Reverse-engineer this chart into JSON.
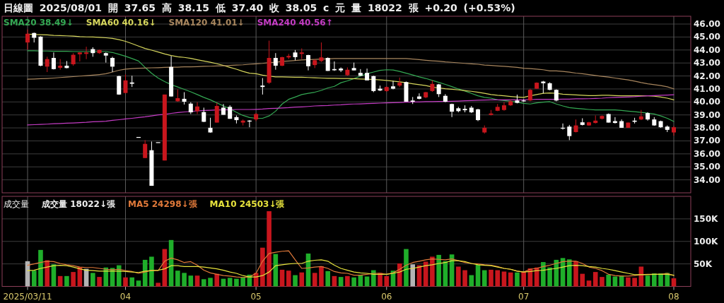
{
  "chart_data": [
    {
      "type": "candlestick",
      "title": "日線圖 2025/08/01 開 37.65 高 38.15 低 37.40 收 38.05 c 元 量 18022 張 +0.20 (+0.53%)",
      "categories": [
        "2025/03/11",
        null,
        null,
        null,
        null,
        null,
        null,
        null,
        null,
        null,
        null,
        null,
        null,
        null,
        null,
        "04",
        null,
        null,
        null,
        null,
        null,
        null,
        null,
        null,
        null,
        null,
        null,
        null,
        null,
        null,
        null,
        null,
        null,
        null,
        null,
        "05",
        null,
        null,
        null,
        null,
        null,
        null,
        null,
        null,
        null,
        null,
        null,
        null,
        null,
        null,
        null,
        null,
        null,
        null,
        null,
        "06",
        null,
        null,
        null,
        null,
        null,
        null,
        null,
        null,
        null,
        null,
        null,
        null,
        null,
        null,
        null,
        null,
        null,
        null,
        null,
        null,
        "07",
        null,
        null,
        null,
        null,
        null,
        null,
        null,
        null,
        null,
        null,
        null,
        null,
        null,
        null,
        null,
        null,
        null,
        null,
        null,
        null,
        null,
        null,
        "08"
      ],
      "ohlc": [
        [
          44.58,
          45.58,
          44.03,
          45.25
        ],
        [
          45.31,
          45.34,
          44.58,
          44.94
        ],
        [
          45.03,
          45.06,
          42.75,
          42.79
        ],
        [
          42.72,
          43.48,
          42.3,
          43.3
        ],
        [
          43.39,
          43.81,
          42.5,
          42.53
        ],
        [
          42.63,
          43.3,
          42.48,
          42.79
        ],
        [
          42.79,
          43.15,
          42.59,
          42.61
        ],
        [
          42.9,
          43.76,
          42.79,
          43.63
        ],
        [
          43.67,
          43.84,
          43.12,
          43.81
        ],
        [
          43.7,
          44.25,
          43.3,
          43.81
        ],
        [
          44.07,
          44.21,
          43.48,
          43.76
        ],
        [
          43.76,
          44.03,
          43.7,
          44.0
        ],
        [
          43.76,
          43.81,
          43.03,
          43.57
        ],
        [
          43.39,
          43.48,
          42.3,
          42.72
        ],
        [
          41.99,
          42.02,
          40.55,
          40.57
        ],
        [
          40.69,
          42.12,
          40.66,
          41.66
        ],
        [
          41.5,
          42.02,
          41.15,
          41.4
        ],
        [
          37.3,
          37.3,
          37.3,
          37.3
        ],
        [
          35.68,
          37.06,
          35.68,
          36.77
        ],
        [
          36.28,
          36.95,
          33.54,
          33.54
        ],
        [
          36.9,
          36.9,
          36.9,
          36.9
        ],
        [
          35.49,
          40.57,
          35.49,
          40.57
        ],
        [
          42.7,
          43.54,
          40.42,
          40.42
        ],
        [
          40.05,
          40.97,
          40.02,
          40.29
        ],
        [
          40.24,
          40.75,
          39.8,
          40.02
        ],
        [
          39.87,
          39.98,
          39.07,
          39.2
        ],
        [
          39.29,
          39.98,
          39.07,
          39.65
        ],
        [
          39.22,
          39.56,
          38.45,
          38.47
        ],
        [
          38.01,
          38.78,
          37.63,
          37.65
        ],
        [
          38.41,
          39.93,
          38.41,
          39.69
        ],
        [
          39.56,
          39.84,
          39.01,
          39.01
        ],
        [
          39.62,
          39.74,
          38.7,
          38.7
        ],
        [
          38.83,
          38.96,
          38.34,
          38.6
        ],
        [
          38.41,
          38.65,
          38.19,
          38.56
        ],
        [
          38.56,
          38.6,
          38.05,
          38.49
        ],
        [
          38.65,
          39.14,
          38.52,
          39.07
        ],
        [
          41.26,
          41.84,
          40.57,
          41.15
        ],
        [
          41.48,
          44.72,
          41.39,
          43.39
        ],
        [
          43.39,
          43.76,
          42.48,
          42.79
        ],
        [
          42.79,
          43.48,
          42.75,
          43.45
        ],
        [
          43.43,
          43.7,
          43.3,
          43.54
        ],
        [
          43.81,
          44.0,
          43.21,
          43.45
        ],
        [
          43.7,
          44.12,
          43.3,
          43.81
        ],
        [
          43.61,
          43.63,
          42.43,
          42.75
        ],
        [
          42.84,
          43.3,
          42.61,
          43.21
        ],
        [
          43.15,
          44.58,
          43.08,
          43.43
        ],
        [
          43.39,
          43.43,
          42.39,
          42.39
        ],
        [
          42.53,
          43.12,
          42.39,
          42.44
        ],
        [
          42.57,
          42.66,
          42.3,
          42.43
        ],
        [
          42.06,
          42.66,
          42.02,
          42.48
        ],
        [
          42.61,
          43.03,
          42.43,
          42.43
        ],
        [
          42.24,
          42.53,
          41.99,
          42.02
        ],
        [
          42.24,
          42.57,
          41.66,
          41.66
        ],
        [
          41.99,
          42.02,
          40.75,
          40.84
        ],
        [
          41.02,
          41.26,
          40.84,
          40.88
        ],
        [
          40.84,
          41.2,
          40.78,
          41.15
        ],
        [
          41.2,
          41.62,
          40.97,
          41.02
        ],
        [
          41.26,
          41.88,
          41.15,
          41.48
        ],
        [
          41.53,
          41.57,
          40.02,
          40.02
        ],
        [
          40.11,
          40.38,
          39.84,
          40.02
        ],
        [
          40.42,
          40.66,
          40.2,
          40.24
        ],
        [
          40.35,
          40.78,
          40.29,
          40.75
        ],
        [
          40.84,
          41.66,
          40.78,
          41.39
        ],
        [
          41.35,
          41.39,
          40.38,
          40.6
        ],
        [
          40.47,
          40.6,
          39.98,
          40.02
        ],
        [
          39.84,
          39.87,
          38.83,
          39.25
        ],
        [
          39.51,
          39.62,
          39.2,
          39.29
        ],
        [
          39.47,
          39.74,
          39.2,
          39.36
        ],
        [
          39.56,
          39.69,
          39.14,
          39.2
        ],
        [
          39.43,
          39.47,
          38.52,
          38.6
        ],
        [
          37.65,
          38.19,
          37.56,
          38.01
        ],
        [
          39.0,
          39.38,
          38.96,
          39.11
        ],
        [
          39.32,
          39.84,
          39.29,
          39.62
        ],
        [
          39.38,
          39.98,
          39.32,
          39.74
        ],
        [
          39.74,
          40.2,
          39.69,
          40.05
        ],
        [
          40.11,
          40.56,
          39.89,
          39.93
        ],
        [
          40.11,
          40.2,
          40.02,
          40.05
        ],
        [
          40.11,
          41.02,
          40.05,
          40.93
        ],
        [
          41.02,
          41.51,
          41.0,
          41.48
        ],
        [
          41.57,
          41.62,
          40.66,
          41.44
        ],
        [
          41.44,
          41.51,
          40.9,
          40.93
        ],
        [
          40.93,
          40.97,
          40.05,
          40.11
        ],
        [
          38.01,
          38.34,
          37.87,
          37.98
        ],
        [
          38.1,
          38.23,
          37.06,
          37.37
        ],
        [
          37.68,
          38.65,
          37.65,
          38.19
        ],
        [
          38.43,
          38.74,
          38.19,
          38.23
        ],
        [
          38.19,
          38.47,
          38.16,
          38.43
        ],
        [
          38.38,
          38.96,
          38.34,
          38.56
        ],
        [
          38.7,
          38.96,
          38.65,
          38.92
        ],
        [
          39.07,
          39.11,
          38.41,
          38.41
        ],
        [
          38.52,
          38.83,
          38.34,
          38.38
        ],
        [
          38.52,
          38.65,
          38.01,
          38.01
        ],
        [
          38.01,
          38.41,
          38.01,
          38.41
        ],
        [
          38.56,
          38.78,
          38.34,
          38.47
        ],
        [
          38.65,
          39.38,
          38.6,
          38.89
        ],
        [
          39.14,
          39.2,
          38.56,
          38.65
        ],
        [
          38.65,
          38.83,
          38.16,
          38.19
        ],
        [
          38.52,
          38.56,
          38.01,
          38.05
        ],
        [
          38.1,
          38.19,
          37.68,
          37.85
        ],
        [
          37.65,
          38.15,
          37.4,
          38.05
        ]
      ],
      "colors": [
        "#c8161d",
        "#ffffff",
        "#ffffff",
        "#c8161d",
        "#ffffff",
        "#c8161d",
        "#ffffff",
        "#c8161d",
        "#c8161d",
        "#c8161d",
        "#ffffff",
        "#c8161d",
        "#ffffff",
        "#ffffff",
        "#ffffff",
        "#c8161d",
        "#ffffff",
        "#ffffff",
        "#c8161d",
        "#ffffff",
        "#ffffff",
        "#c8161d",
        "#ffffff",
        "#c8161d",
        "#ffffff",
        "#ffffff",
        "#c8161d",
        "#ffffff",
        "#ffffff",
        "#c8161d",
        "#ffffff",
        "#ffffff",
        "#ffffff",
        "#c8161d",
        "#ffffff",
        "#c8161d",
        "#ffffff",
        "#c8161d",
        "#ffffff",
        "#c8161d",
        "#c8161d",
        "#ffffff",
        "#c8161d",
        "#ffffff",
        "#c8161d",
        "#c8161d",
        "#ffffff",
        "#ffffff",
        "#ffffff",
        "#c8161d",
        "#ffffff",
        "#ffffff",
        "#ffffff",
        "#ffffff",
        "#ffffff",
        "#c8161d",
        "#ffffff",
        "#c8161d",
        "#ffffff",
        "#ffffff",
        "#ffffff",
        "#c8161d",
        "#c8161d",
        "#ffffff",
        "#ffffff",
        "#ffffff",
        "#ffffff",
        "#ffffff",
        "#ffffff",
        "#ffffff",
        "#c8161d",
        "#c8161d",
        "#c8161d",
        "#c8161d",
        "#c8161d",
        "#ffffff",
        "#ffffff",
        "#c8161d",
        "#c8161d",
        "#ffffff",
        "#ffffff",
        "#ffffff",
        "#ffffff",
        "#ffffff",
        "#c8161d",
        "#ffffff",
        "#c8161d",
        "#c8161d",
        "#c8161d",
        "#ffffff",
        "#ffffff",
        "#ffffff",
        "#c8161d",
        "#ffffff",
        "#c8161d",
        "#ffffff",
        "#ffffff",
        "#ffffff",
        "#ffffff",
        "#c8161d"
      ],
      "series": [
        {
          "name": "SMA20 38.49↓",
          "type": "line",
          "color": "#34a853",
          "values": [
            43.94,
            43.94,
            43.92,
            43.92,
            43.9,
            43.9,
            43.9,
            43.88,
            43.88,
            43.88,
            43.88,
            43.88,
            43.88,
            43.81,
            43.67,
            43.52,
            43.34,
            43.15,
            42.66,
            42.21,
            41.84,
            41.57,
            41.33,
            41.15,
            40.97,
            40.78,
            40.57,
            40.35,
            40.16,
            39.93,
            39.69,
            39.47,
            39.2,
            38.96,
            38.8,
            38.74,
            38.74,
            38.92,
            39.29,
            39.84,
            40.2,
            40.38,
            40.57,
            40.66,
            40.75,
            40.89,
            41.08,
            41.2,
            41.48,
            41.62,
            41.79,
            41.99,
            42.17,
            42.3,
            42.43,
            42.48,
            42.46,
            42.35,
            42.21,
            42.08,
            41.93,
            41.81,
            41.66,
            41.51,
            41.35,
            41.18,
            41.0,
            40.84,
            40.66,
            40.47,
            40.35,
            40.29,
            40.16,
            40.11,
            40.05,
            39.98,
            39.89,
            39.84,
            39.93,
            39.98,
            40.02,
            39.84,
            39.69,
            39.56,
            39.51,
            39.47,
            39.42,
            39.38,
            39.38,
            39.38,
            39.38,
            39.34,
            39.29,
            39.25,
            39.2,
            39.14,
            39.07,
            38.92,
            38.74,
            38.49
          ]
        },
        {
          "name": "SMA60 40.16↓",
          "type": "line",
          "color": "#d6d65c",
          "values": [
            45.22,
            45.2,
            45.18,
            45.16,
            45.12,
            45.11,
            45.09,
            45.07,
            45.03,
            45.01,
            45.0,
            44.98,
            44.94,
            44.89,
            44.8,
            44.67,
            44.49,
            44.3,
            44.12,
            43.99,
            43.85,
            43.7,
            43.57,
            43.48,
            43.43,
            43.36,
            43.25,
            43.15,
            43.06,
            42.94,
            42.81,
            42.66,
            42.52,
            42.35,
            42.21,
            42.17,
            42.06,
            41.99,
            41.93,
            41.93,
            41.91,
            41.9,
            41.9,
            41.88,
            41.86,
            41.84,
            41.82,
            41.82,
            41.81,
            41.81,
            41.79,
            41.77,
            41.75,
            41.73,
            41.7,
            41.66,
            41.6,
            41.55,
            41.48,
            41.4,
            41.33,
            41.26,
            41.15,
            41.08,
            41.02,
            40.98,
            40.93,
            40.87,
            40.82,
            40.75,
            40.66,
            40.57,
            40.51,
            40.47,
            40.42,
            40.38,
            40.35,
            40.47,
            40.57,
            40.66,
            40.69,
            40.66,
            40.6,
            40.57,
            40.54,
            40.51,
            40.49,
            40.49,
            40.51,
            40.51,
            40.49,
            40.47,
            40.47,
            40.47,
            40.47,
            40.47,
            40.44,
            40.38,
            40.29,
            40.16
          ]
        },
        {
          "name": "SMA120 41.01↓",
          "type": "line",
          "color": "#a8865e",
          "values": [
            41.75,
            41.77,
            41.79,
            41.81,
            41.84,
            41.88,
            41.91,
            41.95,
            41.99,
            42.02,
            42.06,
            42.11,
            42.17,
            42.3,
            42.44,
            42.53,
            42.57,
            42.59,
            42.61,
            42.63,
            42.64,
            42.66,
            42.68,
            42.68,
            42.7,
            42.7,
            42.72,
            42.74,
            42.75,
            42.77,
            42.79,
            42.81,
            42.84,
            42.86,
            42.9,
            42.94,
            42.97,
            43.03,
            43.06,
            43.12,
            43.15,
            43.19,
            43.23,
            43.26,
            43.28,
            43.3,
            43.32,
            43.34,
            43.34,
            43.34,
            43.34,
            43.34,
            43.34,
            43.34,
            43.34,
            43.34,
            43.34,
            43.34,
            43.34,
            43.3,
            43.26,
            43.21,
            43.17,
            43.14,
            43.08,
            43.05,
            43.01,
            42.97,
            42.94,
            42.9,
            42.84,
            42.81,
            42.77,
            42.74,
            42.7,
            42.66,
            42.6,
            42.57,
            42.53,
            42.48,
            42.39,
            42.39,
            42.35,
            42.3,
            42.22,
            42.17,
            42.11,
            42.04,
            41.97,
            41.91,
            41.84,
            41.77,
            41.7,
            41.6,
            41.49,
            41.4,
            41.33,
            41.26,
            41.17,
            41.01
          ]
        },
        {
          "name": "SMA240 40.56↑",
          "type": "line",
          "color": "#c43cc4",
          "values": [
            38.23,
            38.25,
            38.27,
            38.29,
            38.32,
            38.34,
            38.36,
            38.38,
            38.41,
            38.43,
            38.47,
            38.49,
            38.52,
            38.58,
            38.63,
            38.69,
            38.74,
            38.8,
            38.85,
            38.92,
            39.0,
            39.05,
            39.12,
            39.18,
            39.23,
            39.27,
            39.31,
            39.34,
            39.36,
            39.38,
            39.38,
            39.4,
            39.42,
            39.42,
            39.42,
            39.43,
            39.45,
            39.49,
            39.51,
            39.54,
            39.56,
            39.6,
            39.62,
            39.65,
            39.69,
            39.71,
            39.72,
            39.76,
            39.78,
            39.82,
            39.84,
            39.85,
            39.87,
            39.89,
            39.91,
            39.93,
            39.94,
            39.96,
            39.98,
            40.0,
            40.0,
            40.02,
            40.02,
            40.04,
            40.04,
            40.05,
            40.07,
            40.09,
            40.11,
            40.13,
            40.15,
            40.16,
            40.16,
            40.16,
            40.16,
            40.16,
            40.16,
            40.18,
            40.2,
            40.2,
            40.2,
            40.2,
            40.22,
            40.22,
            40.24,
            40.24,
            40.25,
            40.27,
            40.29,
            40.33,
            40.35,
            40.36,
            40.38,
            40.4,
            40.44,
            40.47,
            40.49,
            40.51,
            40.53,
            40.56
          ]
        }
      ],
      "ylim": [
        33,
        46.6
      ],
      "yticks": [
        {
          "value": 34,
          "label": "34.00"
        },
        {
          "value": 35,
          "label": "35.00"
        },
        {
          "value": 36,
          "label": "36.00"
        },
        {
          "value": 37,
          "label": "37.00"
        },
        {
          "value": 38,
          "label": "38.00"
        },
        {
          "value": 39,
          "label": "39.00"
        },
        {
          "value": 40,
          "label": "40.00"
        },
        {
          "value": 41,
          "label": "41.00"
        },
        {
          "value": 42,
          "label": "42.00"
        },
        {
          "value": 43,
          "label": "43.00"
        },
        {
          "value": 44,
          "label": "44.00"
        },
        {
          "value": 45,
          "label": "45.00"
        },
        {
          "value": 46,
          "label": "46.00"
        }
      ],
      "grid": true,
      "legend": "top left",
      "tick_labels": "y"
    },
    {
      "type": "bar",
      "title": "成交量",
      "subtitle": "成交量 18022↓張",
      "categories": [
        "2025/03/11",
        null,
        null,
        null,
        null,
        null,
        null,
        null,
        null,
        null,
        null,
        null,
        null,
        null,
        null,
        "04",
        null,
        null,
        null,
        null,
        null,
        null,
        null,
        null,
        null,
        null,
        null,
        null,
        null,
        null,
        null,
        null,
        null,
        null,
        null,
        "05",
        null,
        null,
        null,
        null,
        null,
        null,
        null,
        null,
        null,
        null,
        null,
        null,
        null,
        null,
        null,
        null,
        null,
        null,
        null,
        "06",
        null,
        null,
        null,
        null,
        null,
        null,
        null,
        null,
        null,
        null,
        null,
        null,
        null,
        null,
        null,
        null,
        null,
        null,
        null,
        null,
        "07",
        null,
        null,
        null,
        null,
        null,
        null,
        null,
        null,
        null,
        null,
        null,
        null,
        null,
        null,
        null,
        null,
        null,
        null,
        null,
        null,
        null,
        null,
        "08"
      ],
      "series": [
        {
          "type": "bar",
          "colors": [
            "#b4b4b4",
            "#1fae2a",
            "#1fae2a",
            "#c8161d",
            "#1fae2a",
            "#c8161d",
            "#1fae2a",
            "#c8161d",
            "#c8161d",
            "#b4b4b4",
            "#1fae2a",
            "#c8161d",
            "#1fae2a",
            "#1fae2a",
            "#1fae2a",
            "#c8161d",
            "#1fae2a",
            "#1fae2a",
            "#1fae2a",
            "#1fae2a",
            "#c8161d",
            "#c8161d",
            "#1fae2a",
            "#1fae2a",
            "#1fae2a",
            "#1fae2a",
            "#c8161d",
            "#1fae2a",
            "#1fae2a",
            "#c8161d",
            "#1fae2a",
            "#1fae2a",
            "#1fae2a",
            "#1fae2a",
            "#1fae2a",
            "#c8161d",
            "#c8161d",
            "#c8161d",
            "#1fae2a",
            "#c8161d",
            "#c8161d",
            "#1fae2a",
            "#c8161d",
            "#1fae2a",
            "#c8161d",
            "#c8161d",
            "#1fae2a",
            "#c8161d",
            "#1fae2a",
            "#c8161d",
            "#1fae2a",
            "#1fae2a",
            "#1fae2a",
            "#1fae2a",
            "#c8161d",
            "#c8161d",
            "#1fae2a",
            "#c8161d",
            "#1fae2a",
            "#b4b4b4",
            "#c8161d",
            "#c8161d",
            "#c8161d",
            "#1fae2a",
            "#1fae2a",
            "#1fae2a",
            "#c8161d",
            "#c8161d",
            "#1fae2a",
            "#1fae2a",
            "#1fae2a",
            "#c8161d",
            "#c8161d",
            "#c8161d",
            "#c8161d",
            "#1fae2a",
            "#c8161d",
            "#c8161d",
            "#c8161d",
            "#1fae2a",
            "#1fae2a",
            "#1fae2a",
            "#1fae2a",
            "#1fae2a",
            "#c8161d",
            "#c8161d",
            "#c8161d",
            "#c8161d",
            "#c8161d",
            "#1fae2a",
            "#1fae2a",
            "#1fae2a",
            "#c8161d",
            "#c8161d",
            "#c8161d",
            "#1fae2a",
            "#1fae2a",
            "#1fae2a",
            "#1fae2a",
            "#c8161d"
          ],
          "values": [
            56000,
            35000,
            81000,
            58000,
            49000,
            23000,
            23000,
            32000,
            43000,
            39000,
            30000,
            21000,
            42000,
            41000,
            47000,
            20000,
            20000,
            13000,
            59000,
            66000,
            8000,
            83000,
            103000,
            35000,
            30000,
            24000,
            24000,
            16000,
            19000,
            28000,
            17000,
            19000,
            17000,
            20000,
            26000,
            30000,
            86000,
            167000,
            72000,
            37000,
            35000,
            25000,
            31000,
            73000,
            30000,
            45000,
            34000,
            23000,
            21000,
            23000,
            20000,
            26000,
            22000,
            36000,
            30000,
            23000,
            35000,
            51000,
            83000,
            49000,
            47000,
            55000,
            66000,
            70000,
            56000,
            71000,
            44000,
            36000,
            25000,
            48000,
            36000,
            37000,
            36000,
            33000,
            31000,
            31000,
            33000,
            40000,
            42000,
            54000,
            42000,
            59000,
            63000,
            60000,
            56000,
            28000,
            13000,
            32000,
            21000,
            26000,
            22000,
            24000,
            20000,
            19000,
            44000,
            24000,
            29000,
            29000,
            30000,
            18000
          ]
        },
        {
          "name": "MA5 24298↓張",
          "type": "line",
          "color": "#e0793a",
          "values": [
            47000,
            50000,
            53000,
            56000,
            55000,
            51000,
            48000,
            46000,
            43000,
            42000,
            42000,
            40000,
            38000,
            37000,
            38000,
            35000,
            33000,
            29000,
            32000,
            36000,
            35000,
            56000,
            63000,
            59000,
            53000,
            55000,
            47000,
            36000,
            30000,
            27000,
            24000,
            23000,
            21000,
            20000,
            21000,
            29000,
            56000,
            73000,
            76000,
            78000,
            79000,
            59000,
            40000,
            41000,
            43000,
            44000,
            40000,
            33000,
            30000,
            29000,
            25000,
            25000,
            27000,
            29000,
            29000,
            27000,
            30000,
            38000,
            47000,
            53000,
            56000,
            59000,
            61000,
            60000,
            59000,
            61000,
            57000,
            53000,
            51000,
            50000,
            48000,
            47000,
            44000,
            40000,
            38000,
            34000,
            32000,
            38000,
            40000,
            44000,
            47000,
            51000,
            55000,
            56000,
            56000,
            51000,
            43000,
            40000,
            35000,
            27000,
            24000,
            23000,
            23000,
            24000,
            26000,
            27000,
            27000,
            27000,
            29000,
            24000
          ]
        },
        {
          "name": "MA10 24503↓張",
          "type": "line",
          "color": "#e6e23c",
          "values": [
            35000,
            36000,
            40000,
            43000,
            46000,
            47000,
            46000,
            43000,
            39000,
            36000,
            35000,
            34000,
            34000,
            34000,
            34000,
            33000,
            32000,
            31000,
            34000,
            35000,
            36000,
            39000,
            46000,
            46000,
            44000,
            44000,
            44000,
            43000,
            41000,
            39000,
            36000,
            32000,
            29000,
            24000,
            21000,
            21000,
            24000,
            32000,
            46000,
            48000,
            50000,
            51000,
            51000,
            56000,
            58000,
            59000,
            56000,
            47000,
            40000,
            36000,
            32000,
            30000,
            29000,
            27000,
            27000,
            27000,
            29000,
            32000,
            38000,
            40000,
            43000,
            46000,
            48000,
            51000,
            53000,
            57000,
            57000,
            55000,
            51000,
            48000,
            47000,
            46000,
            43000,
            40000,
            38000,
            34000,
            32000,
            33000,
            35000,
            36000,
            38000,
            40000,
            43000,
            46000,
            47000,
            46000,
            44000,
            43000,
            40000,
            38000,
            35000,
            32000,
            29000,
            26000,
            26000,
            26000,
            27000,
            27000,
            27000,
            25000
          ]
        }
      ],
      "ylim": [
        0,
        200000
      ],
      "yticks": [
        {
          "value": 50000,
          "label": "50K"
        },
        {
          "value": 100000,
          "label": "100K"
        },
        {
          "value": 150000,
          "label": "150K"
        }
      ],
      "grid": true,
      "legend": "top left"
    }
  ]
}
